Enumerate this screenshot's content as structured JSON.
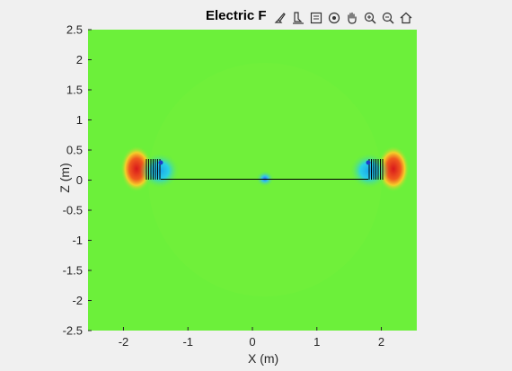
{
  "title": "Electric F",
  "toolbar": {
    "icons": [
      "brush-icon",
      "data-tips-icon",
      "legend-icon",
      "rotate-icon",
      "pan-hand-icon",
      "zoom-in-icon",
      "zoom-out-icon",
      "home-icon"
    ]
  },
  "axes": {
    "xlabel": "X (m)",
    "ylabel": "Z (m)",
    "xticks": [
      "-2",
      "-1",
      "0",
      "1",
      "2"
    ],
    "yticks": [
      "2.5",
      "2",
      "1.5",
      "1",
      "0.5",
      "0",
      "-0.5",
      "-1",
      "-1.5",
      "-2",
      "-2.5"
    ],
    "xlim": [
      -2.55,
      2.55
    ],
    "ylim": [
      -2.5,
      2.5
    ]
  },
  "colors": {
    "field_background": "#6cf03a",
    "high_field": "#d8181c",
    "low_field": "#2ad0e6",
    "line": "#000000"
  },
  "chart_data": {
    "type": "heatmap",
    "title": "Electric F",
    "xlabel": "X (m)",
    "ylabel": "Z (m)",
    "xlim": [
      -2.55,
      2.55
    ],
    "ylim": [
      -2.5,
      2.5
    ],
    "structure_line": {
      "x": [
        -1.77,
        1.77
      ],
      "z": [
        0.0,
        0.0
      ]
    },
    "hotspots": [
      {
        "x": -2.05,
        "z": 0.18
      },
      {
        "x": 2.05,
        "z": 0.18
      }
    ]
  }
}
